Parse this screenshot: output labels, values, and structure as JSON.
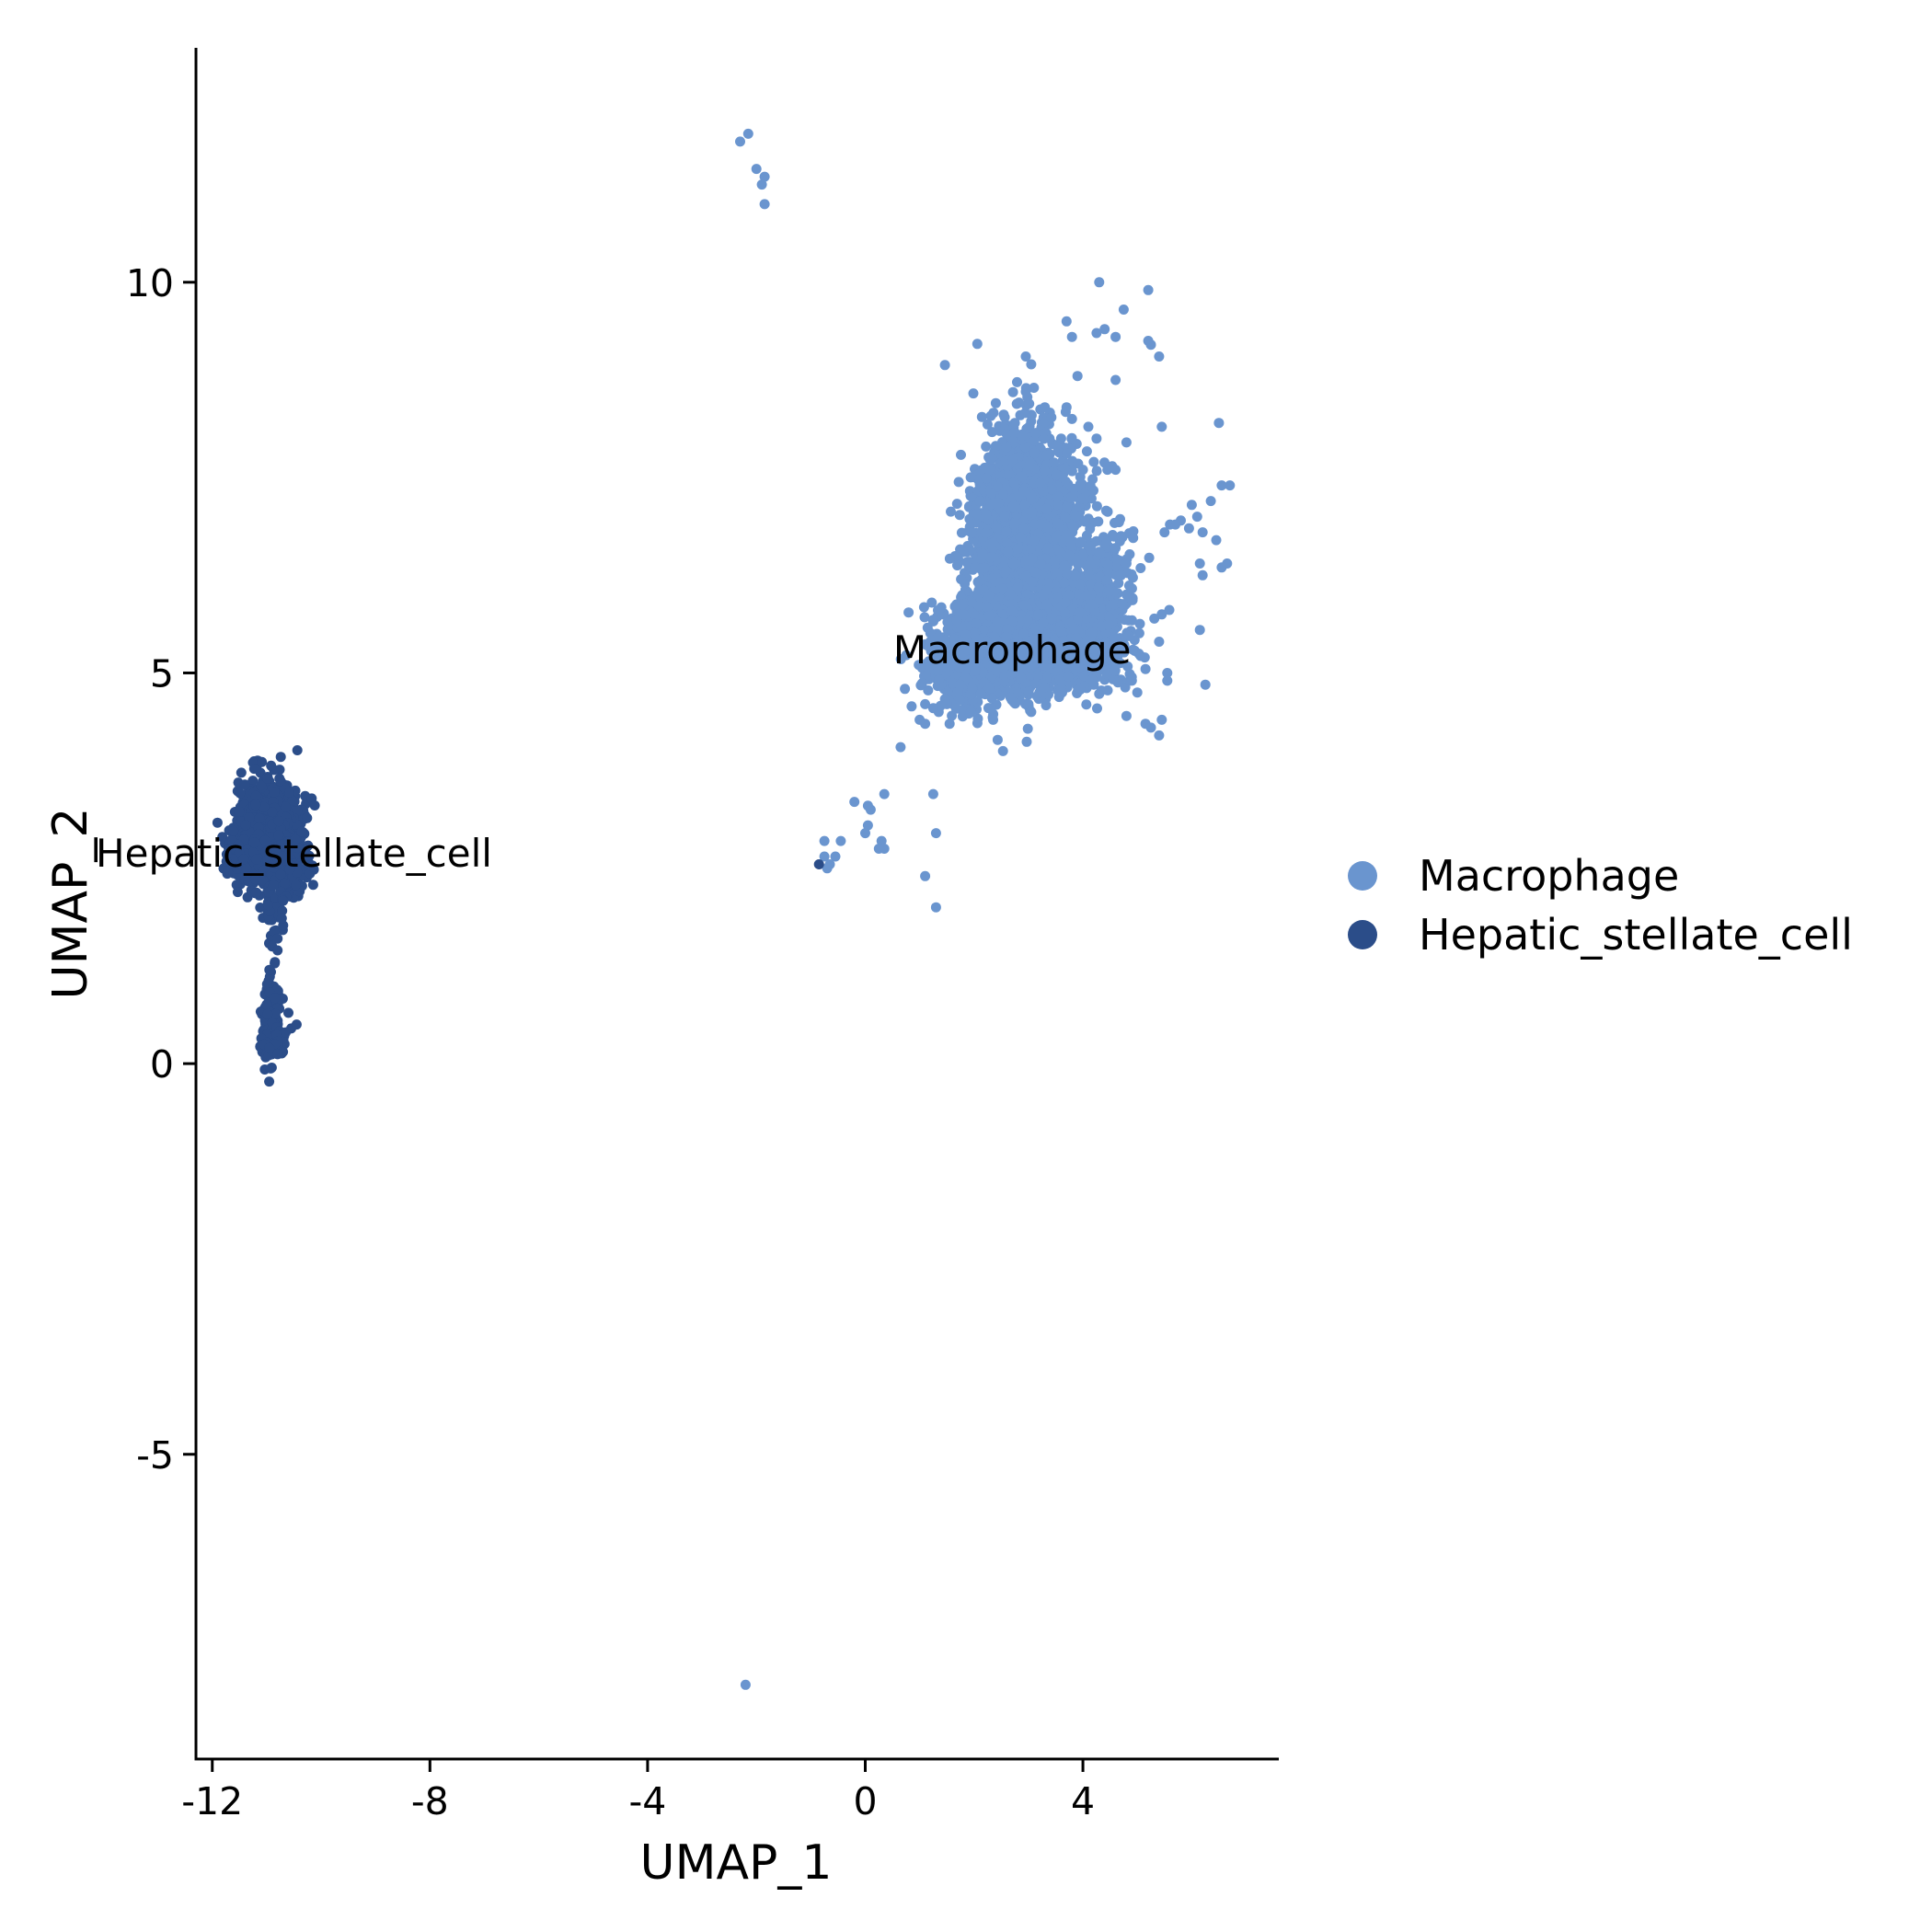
{
  "chart_data": {
    "type": "scatter",
    "title": "",
    "xlabel": "UMAP_1",
    "ylabel": "UMAP_2",
    "xlim": [
      -12.3,
      7.6
    ],
    "ylim": [
      -8.9,
      13.0
    ],
    "xticks": [
      -12,
      -8,
      -4,
      0,
      4
    ],
    "xtick_labels": [
      "-12",
      "-8",
      "-4",
      "0",
      "4"
    ],
    "yticks": [
      -5,
      0,
      5,
      10
    ],
    "ytick_labels": [
      "-5",
      "0",
      "5",
      "10"
    ],
    "grid": false,
    "legend_position": "right",
    "series": [
      {
        "name": "Macrophage",
        "color": "#6a95cf",
        "label_pos": [
          2.7,
          5.3
        ],
        "points": [
          [
            -2.3,
            11.8
          ],
          [
            -2.15,
            11.9
          ],
          [
            -2.0,
            11.45
          ],
          [
            -1.9,
            11.25
          ],
          [
            -1.85,
            11.35
          ],
          [
            -1.85,
            11.0
          ],
          [
            -2.2,
            -7.95
          ],
          [
            4.3,
            10.0
          ],
          [
            5.2,
            9.9
          ],
          [
            4.75,
            9.65
          ],
          [
            3.7,
            9.5
          ],
          [
            4.4,
            9.4
          ],
          [
            3.8,
            9.3
          ],
          [
            4.25,
            9.35
          ],
          [
            4.6,
            9.3
          ],
          [
            5.2,
            9.25
          ],
          [
            5.25,
            9.2
          ],
          [
            5.4,
            9.05
          ],
          [
            2.95,
            9.05
          ],
          [
            3.05,
            8.95
          ],
          [
            3.1,
            8.65
          ],
          [
            3.9,
            8.8
          ],
          [
            4.6,
            8.75
          ],
          [
            2.95,
            8.6
          ],
          [
            3.3,
            8.4
          ],
          [
            3.7,
            8.4
          ],
          [
            3.8,
            8.25
          ],
          [
            4.1,
            8.15
          ],
          [
            2.75,
            8.2
          ],
          [
            4.25,
            8.0
          ],
          [
            6.5,
            8.2
          ],
          [
            5.45,
            8.15
          ],
          [
            4.8,
            7.95
          ],
          [
            3.6,
            8.0
          ],
          [
            4.0,
            7.6
          ],
          [
            4.2,
            7.7
          ],
          [
            4.45,
            7.6
          ],
          [
            4.6,
            7.6
          ],
          [
            6.1,
            7.0
          ],
          [
            6.35,
            7.2
          ],
          [
            6.55,
            7.4
          ],
          [
            6.7,
            7.4
          ],
          [
            6.0,
            7.15
          ],
          [
            5.8,
            6.95
          ],
          [
            5.95,
            6.85
          ],
          [
            5.6,
            6.9
          ],
          [
            5.7,
            6.9
          ],
          [
            6.2,
            6.8
          ],
          [
            5.5,
            6.8
          ],
          [
            6.45,
            6.7
          ],
          [
            6.65,
            6.4
          ],
          [
            6.55,
            6.35
          ],
          [
            6.15,
            6.4
          ],
          [
            6.2,
            6.25
          ],
          [
            5.45,
            5.75
          ],
          [
            6.15,
            5.55
          ],
          [
            5.15,
            5.05
          ],
          [
            5.4,
            5.4
          ],
          [
            5.55,
            5.0
          ],
          [
            5.55,
            4.9
          ],
          [
            6.25,
            4.85
          ],
          [
            5.15,
            4.35
          ],
          [
            5.25,
            4.3
          ],
          [
            5.45,
            4.4
          ],
          [
            5.4,
            4.2
          ],
          [
            4.8,
            4.45
          ],
          [
            5.0,
            4.75
          ],
          [
            4.9,
            4.9
          ],
          [
            4.55,
            6.75
          ],
          [
            4.7,
            6.75
          ],
          [
            4.6,
            6.6
          ],
          [
            4.8,
            6.4
          ],
          [
            4.7,
            6.25
          ],
          [
            4.3,
            6.55
          ],
          [
            1.7,
            4.75
          ],
          [
            1.5,
            4.6
          ],
          [
            1.35,
            4.5
          ],
          [
            1.25,
            4.55
          ],
          [
            1.1,
            4.6
          ],
          [
            1.1,
            4.35
          ],
          [
            1.0,
            4.4
          ],
          [
            1.55,
            4.35
          ],
          [
            0.65,
            4.05
          ],
          [
            2.3,
            4.55
          ],
          [
            2.35,
            4.4
          ],
          [
            3.0,
            4.6
          ],
          [
            3.05,
            4.5
          ],
          [
            3.2,
            4.75
          ],
          [
            3.6,
            4.8
          ],
          [
            3.95,
            4.8
          ],
          [
            4.2,
            4.85
          ],
          [
            0.35,
            3.45
          ],
          [
            1.25,
            3.45
          ],
          [
            -0.2,
            3.35
          ],
          [
            0.05,
            3.3
          ],
          [
            0.1,
            3.25
          ],
          [
            0.05,
            3.05
          ],
          [
            0.0,
            2.95
          ],
          [
            -0.75,
            2.85
          ],
          [
            -0.45,
            2.85
          ],
          [
            0.3,
            2.85
          ],
          [
            0.35,
            2.75
          ],
          [
            0.25,
            2.75
          ],
          [
            1.3,
            2.95
          ],
          [
            -0.75,
            2.65
          ],
          [
            -0.55,
            2.65
          ],
          [
            -0.65,
            2.55
          ],
          [
            -0.7,
            2.5
          ],
          [
            1.1,
            2.4
          ],
          [
            1.3,
            2.0
          ]
        ],
        "clusters": [
          {
            "cx": 2.7,
            "cy": 6.4,
            "sx": 0.4,
            "sy": 0.75,
            "n": 1500,
            "seed": 11
          },
          {
            "cx": 3.3,
            "cy": 7.0,
            "sx": 0.45,
            "sy": 0.5,
            "n": 600,
            "seed": 12
          },
          {
            "cx": 3.9,
            "cy": 5.6,
            "sx": 0.45,
            "sy": 0.25,
            "n": 900,
            "seed": 13
          },
          {
            "cx": 2.4,
            "cy": 5.4,
            "sx": 0.55,
            "sy": 0.3,
            "n": 550,
            "seed": 14
          },
          {
            "cx": 1.7,
            "cy": 5.1,
            "sx": 0.3,
            "sy": 0.25,
            "n": 260,
            "seed": 15
          },
          {
            "cx": 3.6,
            "cy": 5.05,
            "sx": 0.6,
            "sy": 0.18,
            "n": 260,
            "seed": 16
          },
          {
            "cx": 2.9,
            "cy": 7.6,
            "sx": 0.3,
            "sy": 0.35,
            "n": 220,
            "seed": 17
          },
          {
            "cx": 4.3,
            "cy": 6.3,
            "sx": 0.35,
            "sy": 0.3,
            "n": 120,
            "seed": 18
          }
        ]
      },
      {
        "name": "Hepatic_stellate_cell",
        "color": "#2b4d89",
        "label_pos": [
          -10.5,
          2.7
        ],
        "points": [
          [
            -0.85,
            2.55
          ],
          [
            -10.8,
            1.6
          ],
          [
            -10.9,
            1.5
          ],
          [
            -10.8,
            1.45
          ],
          [
            -10.85,
            1.3
          ],
          [
            -10.95,
            1.2
          ],
          [
            -10.6,
            0.65
          ],
          [
            -10.55,
            0.45
          ],
          [
            -10.45,
            0.5
          ],
          [
            -10.65,
            0.4
          ],
          [
            -10.85,
            0.25
          ],
          [
            -10.7,
            0.15
          ],
          [
            -10.8,
            0.12
          ],
          [
            -10.95,
            0.2
          ]
        ],
        "clusters": [
          {
            "cx": -10.95,
            "cy": 3.0,
            "sx": 0.28,
            "sy": 0.28,
            "n": 1100,
            "seed": 21
          },
          {
            "cx": -10.9,
            "cy": 2.55,
            "sx": 0.3,
            "sy": 0.15,
            "n": 500,
            "seed": 22
          },
          {
            "cx": -10.85,
            "cy": 2.05,
            "sx": 0.1,
            "sy": 0.2,
            "n": 60,
            "seed": 23
          },
          {
            "cx": -10.95,
            "cy": 0.6,
            "sx": 0.08,
            "sy": 0.28,
            "n": 120,
            "seed": 24
          },
          {
            "cx": -10.9,
            "cy": 0.22,
            "sx": 0.12,
            "sy": 0.07,
            "n": 40,
            "seed": 25
          }
        ]
      }
    ]
  }
}
